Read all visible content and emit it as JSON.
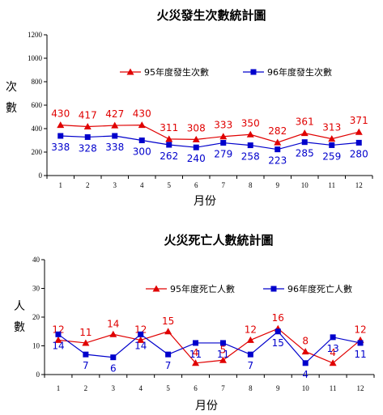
{
  "chart_data": [
    {
      "type": "line",
      "title": "火災發生次數統計圖",
      "xlabel": "月份",
      "ylabel": "次數",
      "categories": [
        "1",
        "2",
        "3",
        "4",
        "5",
        "6",
        "7",
        "8",
        "9",
        "10",
        "11",
        "12"
      ],
      "ylim": [
        0,
        1200
      ],
      "yticks": [
        "0",
        "200",
        "400",
        "600",
        "800",
        "1000",
        "1200"
      ],
      "legend_position": "top-right",
      "series": [
        {
          "name": "95年度發生次數",
          "color": "#e00000",
          "marker": "triangle",
          "values": [
            430,
            417,
            427,
            430,
            311,
            308,
            333,
            350,
            282,
            361,
            313,
            371
          ],
          "labels": [
            "430",
            "417",
            "427",
            "430",
            "311",
            "308",
            "333",
            "350",
            "282",
            "361",
            "313",
            "371"
          ]
        },
        {
          "name": "96年度發生次數",
          "color": "#0000cc",
          "marker": "square",
          "values": [
            338,
            328,
            338,
            300,
            262,
            240,
            279,
            258,
            223,
            285,
            259,
            280
          ],
          "labels": [
            "338",
            "328",
            "338",
            "300",
            "262",
            "240",
            "279",
            "258",
            "223",
            "285",
            "259",
            "280"
          ]
        }
      ]
    },
    {
      "type": "line",
      "title": "火災死亡人數統計圖",
      "xlabel": "月份",
      "ylabel": "人數",
      "categories": [
        "1",
        "2",
        "3",
        "4",
        "5",
        "6",
        "7",
        "8",
        "9",
        "10",
        "11",
        "12"
      ],
      "ylim": [
        0,
        40
      ],
      "yticks": [
        "0",
        "10",
        "20",
        "30",
        "40"
      ],
      "legend_position": "top-right",
      "series": [
        {
          "name": "95年度死亡人數",
          "color": "#e00000",
          "marker": "triangle",
          "values": [
            12,
            11,
            14,
            12,
            15,
            4,
            5,
            12,
            16,
            8,
            4,
            12
          ],
          "labels": [
            "12",
            "11",
            "14",
            "12",
            "15",
            "4",
            "5",
            "12",
            "16",
            "8",
            "4",
            "12"
          ]
        },
        {
          "name": "96年度死亡人數",
          "color": "#0000cc",
          "marker": "square",
          "values": [
            14,
            7,
            6,
            14,
            7,
            11,
            11,
            7,
            15,
            4,
            13,
            11
          ],
          "labels": [
            "14",
            "7",
            "6",
            "14",
            "7",
            "11",
            "11",
            "7",
            "15",
            "4",
            "13",
            "11"
          ]
        }
      ]
    }
  ]
}
